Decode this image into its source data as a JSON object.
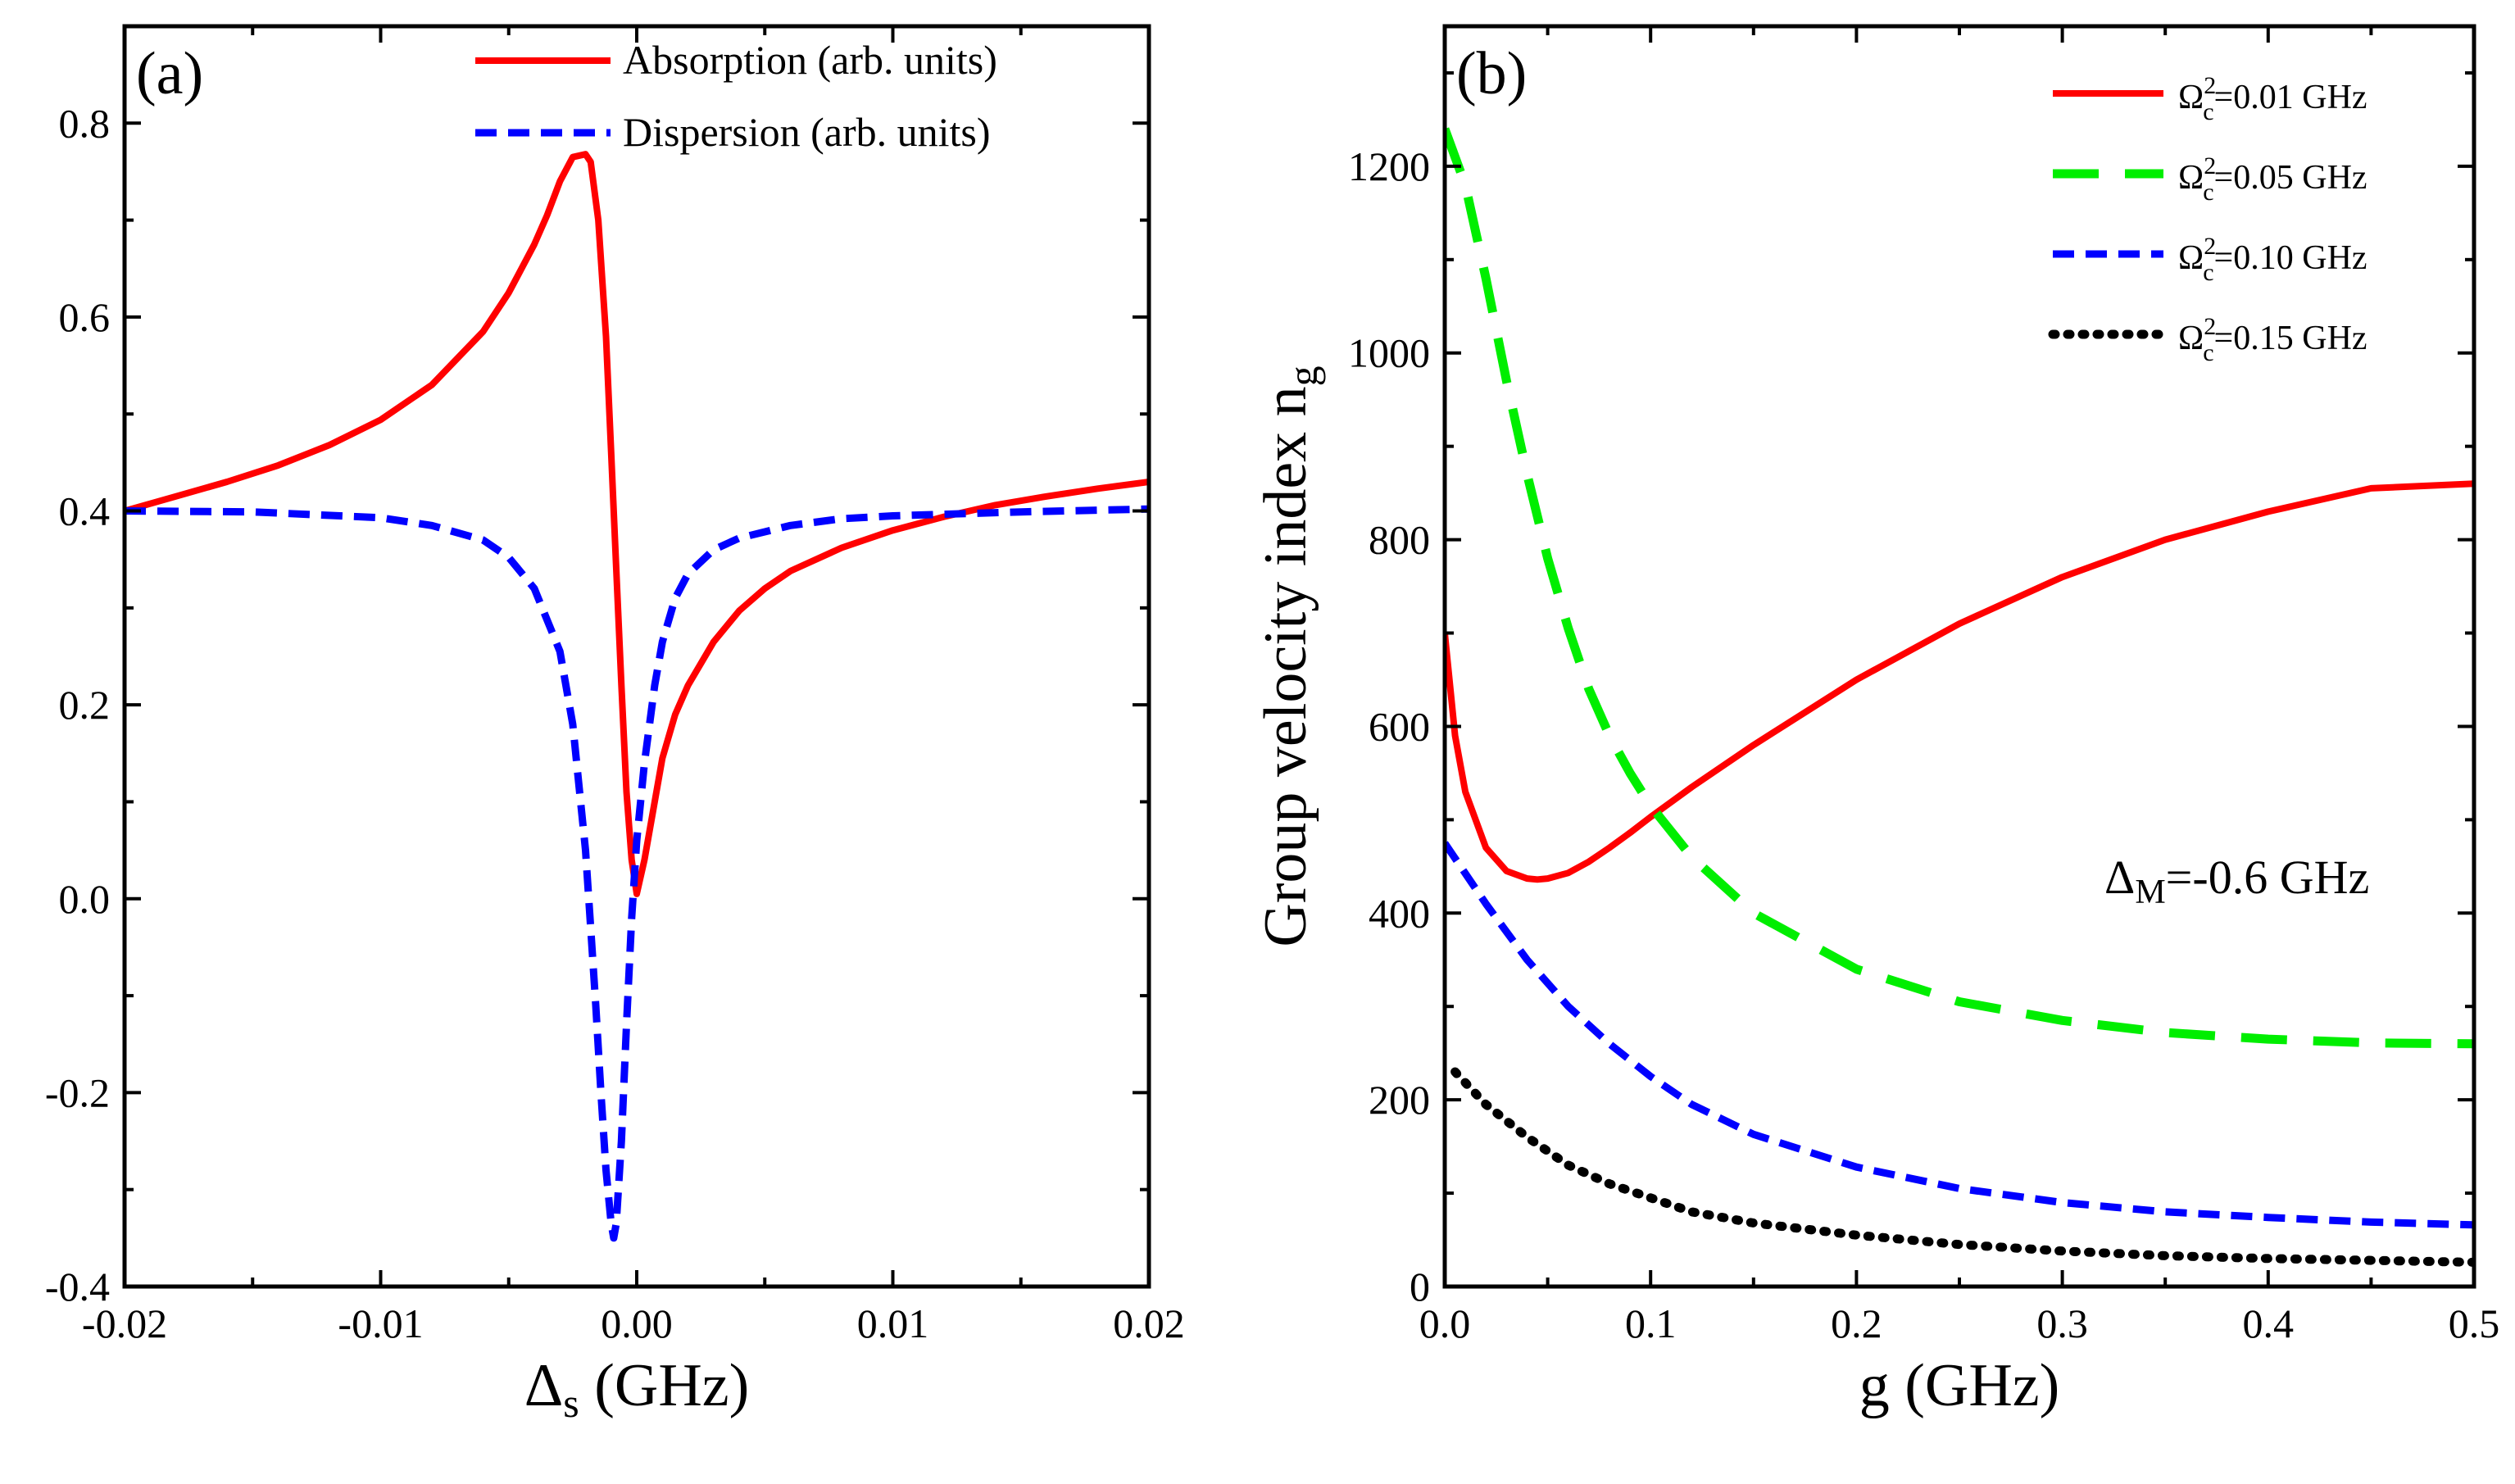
{
  "chart_data": [
    {
      "panel": "(a)",
      "type": "line",
      "xlabel_main": "Δ",
      "xlabel_sub": "s",
      "xlabel_rest": " (GHz)",
      "ylabel": "",
      "xlim": [
        -0.02,
        0.02
      ],
      "ylim": [
        -0.4,
        0.9
      ],
      "xticks": [
        -0.02,
        -0.01,
        0.0,
        0.01,
        0.02
      ],
      "xtick_labels": [
        "-0.02",
        "-0.01",
        "0.00",
        "0.01",
        "0.02"
      ],
      "yticks": [
        -0.4,
        -0.2,
        0.0,
        0.2,
        0.4,
        0.6,
        0.8
      ],
      "ytick_labels": [
        "-0.4",
        "-0.2",
        "0.0",
        "0.2",
        "0.4",
        "0.6",
        "0.8"
      ],
      "legend_position": "top-right",
      "series": [
        {
          "name": "Absorption (arb. units)",
          "color": "#ff0000",
          "style": "solid",
          "x": [
            -0.02,
            -0.018,
            -0.016,
            -0.014,
            -0.012,
            -0.01,
            -0.008,
            -0.006,
            -0.005,
            -0.004,
            -0.0035,
            -0.003,
            -0.0025,
            -0.002,
            -0.0018,
            -0.0015,
            -0.0012,
            -0.001,
            -0.0008,
            -0.0006,
            -0.0004,
            -0.0002,
            0.0,
            0.0003,
            0.0007,
            0.001,
            0.0015,
            0.002,
            0.003,
            0.004,
            0.005,
            0.006,
            0.008,
            0.01,
            0.012,
            0.014,
            0.016,
            0.018,
            0.02
          ],
          "y": [
            0.4,
            0.415,
            0.43,
            0.447,
            0.468,
            0.494,
            0.53,
            0.585,
            0.625,
            0.675,
            0.705,
            0.74,
            0.765,
            0.768,
            0.76,
            0.7,
            0.58,
            0.46,
            0.34,
            0.22,
            0.11,
            0.04,
            0.005,
            0.04,
            0.1,
            0.145,
            0.19,
            0.22,
            0.265,
            0.297,
            0.32,
            0.338,
            0.362,
            0.38,
            0.394,
            0.406,
            0.415,
            0.423,
            0.43
          ]
        },
        {
          "name": "Dispersion (arb. units)",
          "color": "#0000ff",
          "style": "dashed",
          "x": [
            -0.02,
            -0.015,
            -0.01,
            -0.008,
            -0.006,
            -0.005,
            -0.004,
            -0.003,
            -0.0025,
            -0.002,
            -0.0018,
            -0.0016,
            -0.0014,
            -0.0012,
            -0.001,
            -0.0009,
            -0.0008,
            -0.0006,
            -0.0004,
            -0.0002,
            0.0,
            0.0003,
            0.0007,
            0.001,
            0.0015,
            0.002,
            0.003,
            0.004,
            0.006,
            0.008,
            0.01,
            0.015,
            0.02
          ],
          "y": [
            0.4,
            0.399,
            0.393,
            0.385,
            0.37,
            0.352,
            0.32,
            0.255,
            0.18,
            0.05,
            -0.03,
            -0.11,
            -0.2,
            -0.28,
            -0.335,
            -0.35,
            -0.335,
            -0.25,
            -0.13,
            -0.02,
            0.06,
            0.14,
            0.22,
            0.265,
            0.31,
            0.335,
            0.36,
            0.372,
            0.385,
            0.392,
            0.395,
            0.399,
            0.402
          ]
        }
      ]
    },
    {
      "panel": "(b)",
      "type": "line",
      "xlabel": "g (GHz)",
      "ylabel_main": "Group velocity index n",
      "ylabel_sub": "g",
      "xlim": [
        0.0,
        0.5
      ],
      "ylim": [
        0,
        1350
      ],
      "xticks": [
        0.0,
        0.1,
        0.2,
        0.3,
        0.4,
        0.5
      ],
      "xtick_labels": [
        "0.0",
        "0.1",
        "0.2",
        "0.3",
        "0.4",
        "0.5"
      ],
      "yticks": [
        0,
        200,
        400,
        600,
        800,
        1000,
        1200
      ],
      "ytick_labels": [
        "0",
        "200",
        "400",
        "600",
        "800",
        "1000",
        "1200"
      ],
      "legend_position": "top-right",
      "annotation": {
        "main": "Δ",
        "sub": "M",
        "rest": "=-0.6 GHz"
      },
      "series": [
        {
          "name": "Ω",
          "label_sup": "2",
          "label_sub": "c",
          "label_rest": "=0.01 GHz",
          "color": "#ff0000",
          "style": "solid",
          "x": [
            0.0,
            0.005,
            0.01,
            0.02,
            0.03,
            0.04,
            0.045,
            0.05,
            0.06,
            0.07,
            0.08,
            0.09,
            0.1,
            0.12,
            0.15,
            0.2,
            0.25,
            0.3,
            0.35,
            0.4,
            0.45,
            0.5
          ],
          "y": [
            700,
            590,
            530,
            470,
            445,
            437,
            436,
            437,
            443,
            455,
            470,
            486,
            503,
            535,
            580,
            650,
            710,
            760,
            800,
            830,
            855,
            860
          ]
        },
        {
          "name": "Ω",
          "label_sup": "2",
          "label_sub": "c",
          "label_rest": "=0.05 GHz",
          "color": "#00ee00",
          "style": "longdash",
          "x": [
            0.0,
            0.01,
            0.02,
            0.03,
            0.04,
            0.05,
            0.06,
            0.07,
            0.08,
            0.09,
            0.1,
            0.12,
            0.15,
            0.2,
            0.25,
            0.3,
            0.35,
            0.4,
            0.45,
            0.5
          ],
          "y": [
            1240,
            1180,
            1080,
            970,
            870,
            780,
            705,
            640,
            590,
            550,
            515,
            460,
            400,
            340,
            305,
            285,
            272,
            265,
            261,
            260
          ]
        },
        {
          "name": "Ω",
          "label_sup": "2",
          "label_sub": "c",
          "label_rest": "=0.10 GHz",
          "color": "#0000ff",
          "style": "dashed",
          "x": [
            0.0,
            0.02,
            0.04,
            0.06,
            0.08,
            0.1,
            0.12,
            0.15,
            0.2,
            0.25,
            0.3,
            0.35,
            0.4,
            0.45,
            0.5
          ],
          "y": [
            475,
            410,
            350,
            300,
            260,
            225,
            195,
            163,
            128,
            105,
            90,
            80,
            74,
            69,
            66
          ]
        },
        {
          "name": "Ω",
          "label_sup": "2",
          "label_sub": "c",
          "label_rest": "=0.15 GHz",
          "color": "#000000",
          "style": "dotted",
          "x": [
            0.005,
            0.02,
            0.04,
            0.06,
            0.08,
            0.1,
            0.12,
            0.15,
            0.2,
            0.25,
            0.3,
            0.35,
            0.4,
            0.45,
            0.5
          ],
          "y": [
            230,
            195,
            160,
            130,
            110,
            95,
            80,
            68,
            55,
            45,
            38,
            33,
            30,
            28,
            26
          ]
        }
      ]
    }
  ]
}
